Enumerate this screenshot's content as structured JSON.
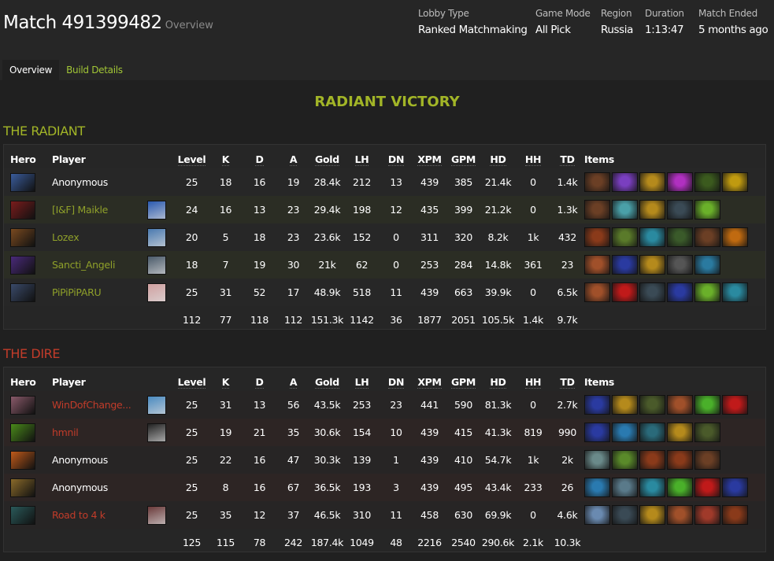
{
  "header": {
    "title": "Match 491399482",
    "subtitle": "Overview",
    "meta": [
      {
        "label": "Lobby Type",
        "value": "Ranked Matchmaking"
      },
      {
        "label": "Game Mode",
        "value": "All Pick"
      },
      {
        "label": "Region",
        "value": "Russia"
      },
      {
        "label": "Duration",
        "value": "1:13:47"
      },
      {
        "label": "Match Ended",
        "value": "5 months ago"
      }
    ]
  },
  "tabs": [
    {
      "label": "Overview",
      "active": true
    },
    {
      "label": "Build Details",
      "active": false
    }
  ],
  "result": "RADIANT VICTORY",
  "colors": {
    "radiant": "#a2b527",
    "dire": "#c23c2a",
    "link": "#a2c636"
  },
  "columns": [
    "Hero",
    "Player",
    "",
    "Level",
    "K",
    "D",
    "A",
    "Gold",
    "LH",
    "DN",
    "XPM",
    "GPM",
    "HD",
    "HH",
    "TD",
    "Items"
  ],
  "teams": [
    {
      "name": "THE RADIANT",
      "key": "radiant",
      "players": [
        {
          "player": "Anonymous",
          "linked": false,
          "hero_color": "#3a5c9c",
          "avatar": null,
          "stats": [
            "25",
            "18",
            "16",
            "19",
            "28.4k",
            "212",
            "13",
            "439",
            "385",
            "21.4k",
            "0",
            "1.4k"
          ],
          "items": [
            "#6b3f25",
            "#7a3fc0",
            "#b58a1c",
            "#b030c0",
            "#3b5a1e",
            "#c09a10"
          ]
        },
        {
          "player": "[I&F] Maikle",
          "linked": true,
          "hero_color": "#7a1c1c",
          "avatar": "#2a5ab0",
          "stats": [
            "24",
            "16",
            "13",
            "23",
            "29.4k",
            "198",
            "12",
            "435",
            "399",
            "21.2k",
            "0",
            "1.3k"
          ],
          "items": [
            "#6b3f25",
            "#4aa0a8",
            "#b58a1c",
            "#3a4a55",
            "#6ab02a"
          ]
        },
        {
          "player": "Lozex",
          "linked": true,
          "hero_color": "#7a4a20",
          "avatar": "#4a7ab0",
          "stats": [
            "20",
            "5",
            "18",
            "23",
            "23.6k",
            "152",
            "0",
            "311",
            "320",
            "8.2k",
            "1k",
            "432"
          ],
          "items": [
            "#8a3a1a",
            "#5a7a2a",
            "#2a8aa0",
            "#3a5a2a",
            "#6b3f25",
            "#c06a10"
          ]
        },
        {
          "player": "Sancti_Angeli",
          "linked": true,
          "hero_color": "#4a2a7a",
          "avatar": "#4a5a6a",
          "stats": [
            "18",
            "7",
            "19",
            "30",
            "21k",
            "62",
            "0",
            "253",
            "284",
            "14.8k",
            "361",
            "23"
          ],
          "items": [
            "#a0502a",
            "#2a3aa0",
            "#b58a1c",
            "#555",
            "#2a7aa0"
          ]
        },
        {
          "player": "PiPiPiPARU",
          "linked": true,
          "hero_color": "#3a4a6a",
          "avatar": "#d0a0a0",
          "stats": [
            "25",
            "31",
            "52",
            "17",
            "48.9k",
            "518",
            "11",
            "439",
            "663",
            "39.9k",
            "0",
            "6.5k"
          ],
          "items": [
            "#a0502a",
            "#c01a1a",
            "#3a4a55",
            "#2a3aa0",
            "#6ab02a",
            "#2a8aa0"
          ]
        }
      ],
      "totals": [
        "112",
        "77",
        "118",
        "112",
        "151.3k",
        "1142",
        "36",
        "1877",
        "2051",
        "105.5k",
        "1.4k",
        "9.7k"
      ]
    },
    {
      "name": "THE DIRE",
      "key": "dire",
      "players": [
        {
          "player": "WinDofChange...",
          "linked": true,
          "hero_color": "#8a5a6a",
          "avatar": "#4a8ac0",
          "stats": [
            "25",
            "31",
            "13",
            "56",
            "43.5k",
            "253",
            "23",
            "441",
            "590",
            "81.3k",
            "0",
            "2.7k"
          ],
          "items": [
            "#2a3aa0",
            "#b58a1c",
            "#4a5a2a",
            "#a0502a",
            "#4ab02a",
            "#c01a1a"
          ]
        },
        {
          "player": "hmnil",
          "linked": true,
          "hero_color": "#4a8a1a",
          "avatar": "#222",
          "stats": [
            "25",
            "19",
            "21",
            "35",
            "30.6k",
            "154",
            "10",
            "439",
            "415",
            "41.3k",
            "819",
            "990"
          ],
          "items": [
            "#2a3aa0",
            "#2a7ab0",
            "#2a6a7a",
            "#b58a1c",
            "#4a5a2a"
          ]
        },
        {
          "player": "Anonymous",
          "linked": false,
          "hero_color": "#c05a1a",
          "avatar": null,
          "stats": [
            "25",
            "22",
            "16",
            "47",
            "30.3k",
            "139",
            "1",
            "439",
            "410",
            "54.7k",
            "1k",
            "2k"
          ],
          "items": [
            "#6a8a8a",
            "#5a8a2a",
            "#8a3a1a",
            "#8a3a1a",
            "#6b3f25"
          ]
        },
        {
          "player": "Anonymous",
          "linked": false,
          "hero_color": "#8a6a2a",
          "avatar": null,
          "stats": [
            "25",
            "8",
            "16",
            "67",
            "36.5k",
            "193",
            "3",
            "439",
            "495",
            "43.4k",
            "233",
            "26"
          ],
          "items": [
            "#2a7ab0",
            "#5a7a8a",
            "#2a8aa0",
            "#4ab02a",
            "#c01a1a",
            "#2a3aa0"
          ]
        },
        {
          "player": "Road to 4 k",
          "linked": true,
          "hero_color": "#2a5a5a",
          "avatar": "#6a3a3a",
          "stats": [
            "25",
            "35",
            "12",
            "37",
            "46.5k",
            "310",
            "11",
            "458",
            "630",
            "69.9k",
            "0",
            "4.6k"
          ],
          "items": [
            "#6a8ab0",
            "#3a4a55",
            "#b58a1c",
            "#a0502a",
            "#a03a2a",
            "#8a3a1a"
          ]
        }
      ],
      "totals": [
        "125",
        "115",
        "78",
        "242",
        "187.4k",
        "1049",
        "48",
        "2216",
        "2540",
        "290.6k",
        "2.1k",
        "10.3k"
      ]
    }
  ]
}
